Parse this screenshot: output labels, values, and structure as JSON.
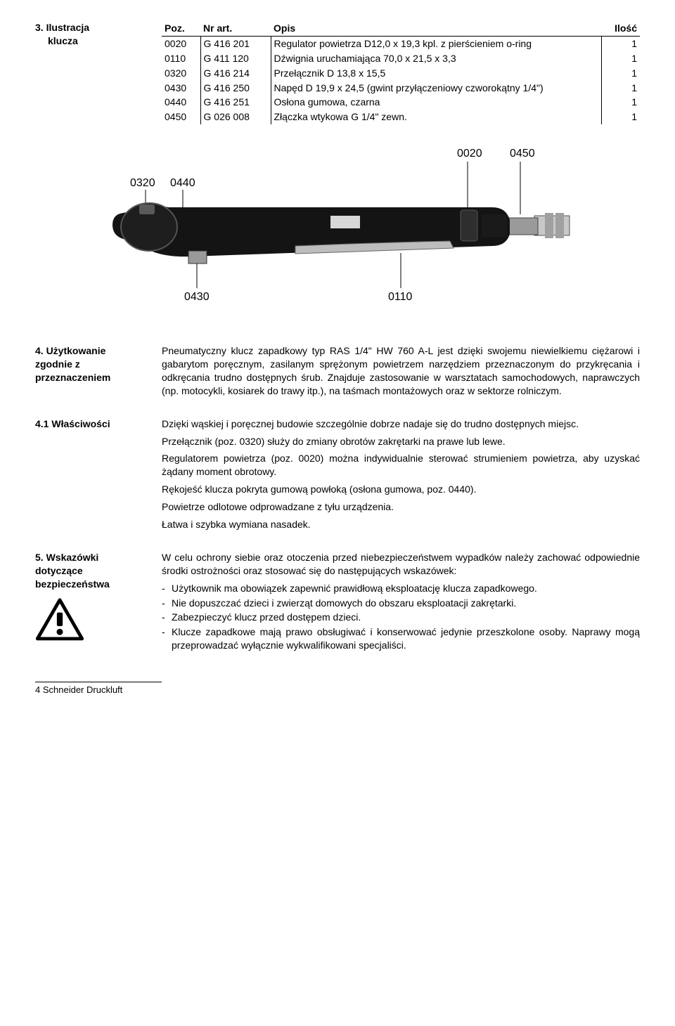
{
  "section3": {
    "label_line1": "3. Ilustracja",
    "label_line2": "klucza",
    "table": {
      "headers": {
        "poz": "Poz.",
        "nr": "Nr art.",
        "opis": "Opis",
        "ilosc": "Ilość"
      },
      "rows": [
        {
          "poz": "0020",
          "nr": "G 416 201",
          "opis": "Regulator powietrza D12,0 x 19,3 kpl. z pierścieniem o-ring",
          "ilosc": "1"
        },
        {
          "poz": "0110",
          "nr": "G 411 120",
          "opis": "Dźwignia uruchamiająca 70,0 x 21,5 x 3,3",
          "ilosc": "1"
        },
        {
          "poz": "0320",
          "nr": "G 416 214",
          "opis": "Przełącznik D 13,8 x 15,5",
          "ilosc": "1"
        },
        {
          "poz": "0430",
          "nr": "G 416 250",
          "opis": "Napęd D 19,9 x 24,5 (gwint przyłączeniowy czworokątny 1/4\")",
          "ilosc": "1"
        },
        {
          "poz": "0440",
          "nr": "G 416 251",
          "opis": "Osłona gumowa, czarna",
          "ilosc": "1"
        },
        {
          "poz": "0450",
          "nr": "G 026 008",
          "opis": "Złączka wtykowa G 1/4\" zewn.",
          "ilosc": "1"
        }
      ]
    }
  },
  "diagram": {
    "labels": [
      "0020",
      "0450",
      "0320",
      "0440",
      "0110",
      "0430"
    ],
    "colors": {
      "body_dark": "#1a1a1a",
      "body_mid": "#3a3a3a",
      "metal": "#b8b8b8",
      "metal_dark": "#7a7a7a",
      "lever": "#cccccc",
      "text": "#000000"
    }
  },
  "section4": {
    "label_line1": "4. Użytkowanie",
    "label_line2": "zgodnie z",
    "label_line3": "przeznaczeniem",
    "body": "Pneumatyczny klucz zapadkowy typ RAS 1/4\" HW 760 A-L jest dzięki swojemu niewielkiemu ciężarowi i gabarytom poręcznym, zasilanym sprężonym powietrzem narzędziem przeznaczonym do przykręcania i odkręcania trudno dostępnych śrub. Znajduje zastosowanie w warsztatach samochodowych, naprawczych (np. motocykli, kosiarek do trawy itp.), na taśmach montażowych oraz w sektorze rolniczym."
  },
  "section4_1": {
    "label": "4.1 Właściwości",
    "paras": [
      "Dzięki wąskiej i poręcznej budowie szczególnie dobrze nadaje się do trudno dostępnych miejsc.",
      "Przełącznik (poz. 0320) służy do zmiany obrotów zakrętarki na prawe lub lewe.",
      "Regulatorem powietrza (poz. 0020) można indywidualnie sterować strumieniem powietrza, aby uzyskać żądany moment obrotowy.",
      "Rękojeść klucza pokryta gumową powłoką (osłona gumowa, poz. 0440).",
      "Powietrze odlotowe odprowadzane z tyłu urządzenia.",
      "Łatwa i szybka wymiana nasadek."
    ]
  },
  "section5": {
    "label_line1": "5. Wskazówki",
    "label_line2": "dotyczące",
    "label_line3": "bezpieczeństwa",
    "intro": "W celu ochrony siebie oraz otoczenia przed niebezpieczeństwem wypadków należy zachować odpowiednie środki ostrożności oraz stosować się do następujących wskazówek:",
    "bullets": [
      "Użytkownik ma obowiązek zapewnić prawidłową eksploatację klucza zapadkowego.",
      "Nie dopuszczać dzieci i zwierząt domowych do obszaru eksploatacji zakrętarki.",
      "Zabezpieczyć klucz przed dostępem dzieci.",
      "Klucze zapadkowe mają prawo obsługiwać i konserwować jedynie przeszkolone osoby. Naprawy mogą przeprowadzać wyłącznie wykwalifikowani specjaliści."
    ]
  },
  "footer": "4 Schneider Druckluft"
}
